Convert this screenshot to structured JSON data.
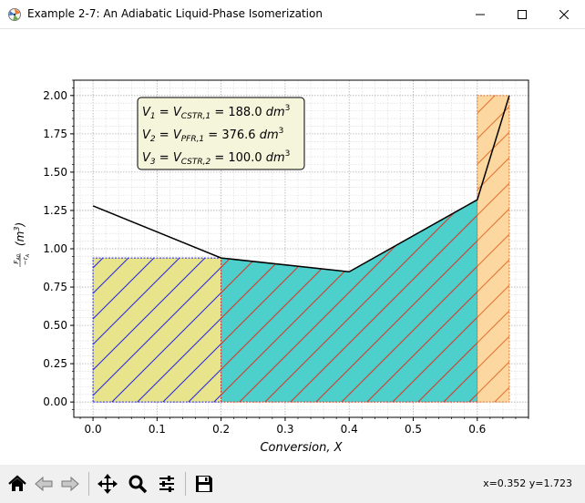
{
  "window": {
    "title": "Example 2-7: An Adiabatic Liquid-Phase Isomerization",
    "controls": [
      "minimize",
      "maximize",
      "close"
    ]
  },
  "chart_data": {
    "type": "area",
    "xlabel": "Conversion, X",
    "ylabel": "F_A0 / -r_A (m^3)",
    "xlim": [
      -0.03,
      0.68
    ],
    "ylim": [
      -0.1,
      2.1
    ],
    "xticks": [
      "0.0",
      "0.1",
      "0.2",
      "0.3",
      "0.4",
      "0.5",
      "0.6"
    ],
    "yticks": [
      "0.00",
      "0.25",
      "0.50",
      "0.75",
      "1.00",
      "1.25",
      "1.50",
      "1.75",
      "2.00"
    ],
    "grid": true,
    "levenspiel_curve": {
      "x": [
        0.0,
        0.2,
        0.4,
        0.6,
        0.65
      ],
      "y": [
        1.28,
        0.94,
        0.85,
        1.32,
        2.0
      ]
    },
    "regions": [
      {
        "name": "CSTR 1",
        "x": [
          0.0,
          0.2
        ],
        "height": 0.94,
        "fill": "#e8e48c",
        "edge": "#2222ee"
      },
      {
        "name": "PFR 1",
        "x": [
          0.2,
          0.6
        ],
        "fill": "#4dcfcb",
        "edge": "#dd3322"
      },
      {
        "name": "CSTR 2",
        "x": [
          0.6,
          0.65
        ],
        "height": 2.0,
        "fill": "#fcd8a0",
        "edge": "#e07030"
      }
    ],
    "annotation": {
      "lines": [
        {
          "lhs": "V",
          "sub1": "1",
          "mid": " = V",
          "sub2": "CSTR,1",
          "rhs": " = 188.0 dm",
          "sup": "3"
        },
        {
          "lhs": "V",
          "sub1": "2",
          "mid": " = V",
          "sub2": "PFR,1",
          "rhs": " = 376.6 dm",
          "sup": "3"
        },
        {
          "lhs": "V",
          "sub1": "3",
          "mid": " = V",
          "sub2": "CSTR,2",
          "rhs": " = 100.0 dm",
          "sup": "3"
        }
      ]
    }
  },
  "toolbar": {
    "buttons": [
      "home-icon",
      "back-icon",
      "forward-icon",
      "pan-icon",
      "zoom-icon",
      "configure-subplots-icon",
      "save-icon"
    ],
    "coords": "x=0.352 y=1.723"
  }
}
